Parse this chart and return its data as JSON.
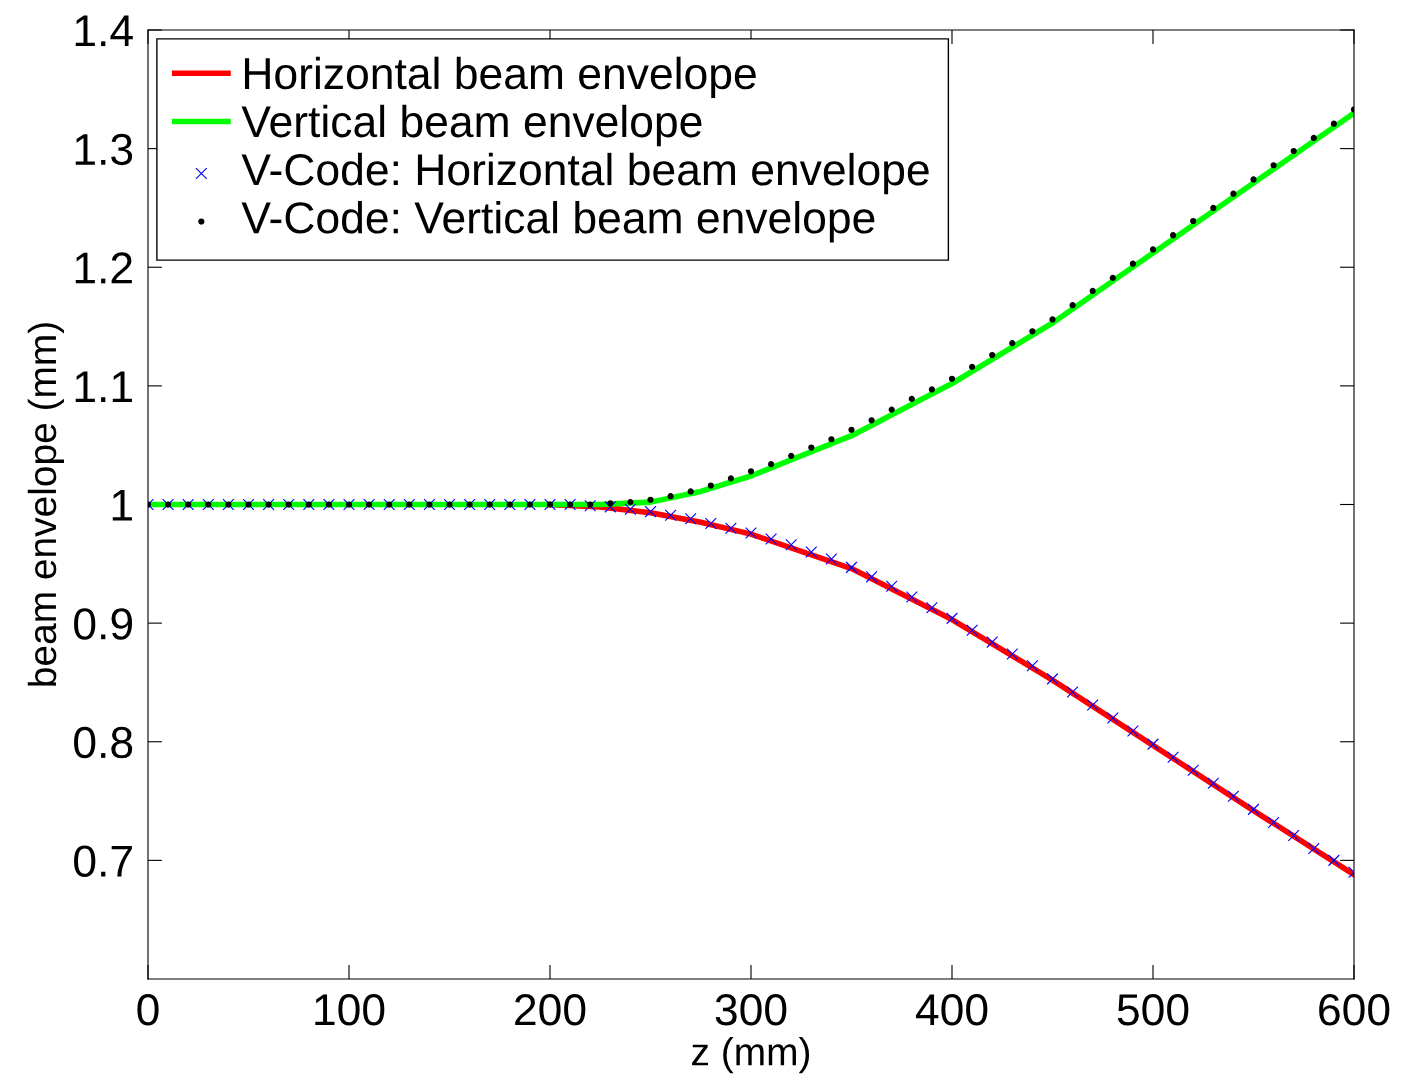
{
  "chart_data": {
    "type": "line",
    "xlabel": "z (mm)",
    "ylabel": "beam envelope (mm)",
    "xlim": [
      0,
      600
    ],
    "ylim": [
      0.6,
      1.4
    ],
    "xticks": [
      0,
      100,
      200,
      300,
      400,
      500,
      600
    ],
    "yticks": [
      0.7,
      0.8,
      0.9,
      {
        "value": 1.0,
        "label": "1"
      },
      1.1,
      1.2,
      1.3,
      1.4
    ],
    "grid": false,
    "legend": "top left",
    "series": [
      {
        "name": "Horizontal beam envelope",
        "color": "#ff0000",
        "marker": "none",
        "line_style": "solid",
        "x": [
          200,
          225,
          250,
          275,
          300,
          350,
          400,
          450,
          500,
          550,
          600
        ],
        "values": [
          1.0,
          0.998,
          0.993,
          0.985,
          0.975,
          0.946,
          0.903,
          0.852,
          0.797,
          0.742,
          0.688
        ]
      },
      {
        "name": "Vertical beam envelope",
        "color": "#00ff00",
        "marker": "none",
        "line_style": "solid",
        "x": [
          0,
          50,
          100,
          150,
          200,
          225,
          250,
          275,
          300,
          350,
          400,
          450,
          500,
          550,
          600
        ],
        "values": [
          1.0,
          1.0,
          1.0,
          1.0,
          1.0,
          1.0,
          1.002,
          1.011,
          1.024,
          1.058,
          1.102,
          1.153,
          1.212,
          1.271,
          1.33
        ]
      },
      {
        "name": "V-Code: Horizontal beam envelope",
        "type": "scatter",
        "color": "#0000ff",
        "marker": "cross",
        "x": [
          0,
          10,
          20,
          30,
          40,
          50,
          60,
          70,
          80,
          90,
          100,
          110,
          120,
          130,
          140,
          150,
          160,
          170,
          180,
          190,
          200,
          210,
          220,
          230,
          240,
          250,
          260,
          270,
          280,
          290,
          300,
          310,
          320,
          330,
          340,
          350,
          360,
          370,
          380,
          390,
          400,
          410,
          420,
          430,
          440,
          450,
          460,
          470,
          480,
          490,
          500,
          510,
          520,
          530,
          540,
          550,
          560,
          570,
          580,
          590,
          600
        ],
        "values": [
          1.0,
          1.0,
          1.0,
          1.0,
          1.0,
          1.0,
          1.0,
          1.0,
          1.0,
          1.0,
          1.0,
          1.0,
          1.0,
          1.0,
          1.0,
          1.0,
          1.0,
          1.0,
          1.0,
          1.0,
          1.0,
          1.0,
          0.999,
          0.998,
          0.996,
          0.994,
          0.991,
          0.988,
          0.984,
          0.98,
          0.976,
          0.971,
          0.966,
          0.96,
          0.954,
          0.947,
          0.939,
          0.931,
          0.922,
          0.913,
          0.904,
          0.894,
          0.884,
          0.874,
          0.864,
          0.853,
          0.842,
          0.831,
          0.82,
          0.809,
          0.798,
          0.787,
          0.776,
          0.765,
          0.754,
          0.743,
          0.732,
          0.721,
          0.71,
          0.7,
          0.69
        ]
      },
      {
        "name": "V-Code: Vertical beam envelope",
        "type": "scatter",
        "color": "#000000",
        "marker": "circle",
        "x": [
          0,
          10,
          20,
          30,
          40,
          50,
          60,
          70,
          80,
          90,
          100,
          110,
          120,
          130,
          140,
          150,
          160,
          170,
          180,
          190,
          200,
          210,
          220,
          230,
          240,
          250,
          260,
          270,
          280,
          290,
          300,
          310,
          320,
          330,
          340,
          350,
          360,
          370,
          380,
          390,
          400,
          410,
          420,
          430,
          440,
          450,
          460,
          470,
          480,
          490,
          500,
          510,
          520,
          530,
          540,
          550,
          560,
          570,
          580,
          590,
          600
        ],
        "values": [
          1.0,
          1.0,
          1.0,
          1.0,
          1.0,
          1.0,
          1.0,
          1.0,
          1.0,
          1.0,
          1.0,
          1.0,
          1.0,
          1.0,
          1.0,
          1.0,
          1.0,
          1.0,
          1.0,
          1.0,
          1.0,
          1.0,
          1.0,
          1.001,
          1.002,
          1.004,
          1.007,
          1.011,
          1.016,
          1.022,
          1.028,
          1.034,
          1.041,
          1.048,
          1.055,
          1.063,
          1.071,
          1.08,
          1.089,
          1.097,
          1.106,
          1.116,
          1.126,
          1.136,
          1.146,
          1.156,
          1.168,
          1.18,
          1.191,
          1.203,
          1.215,
          1.227,
          1.239,
          1.25,
          1.262,
          1.274,
          1.286,
          1.298,
          1.309,
          1.321,
          1.333
        ]
      }
    ]
  }
}
